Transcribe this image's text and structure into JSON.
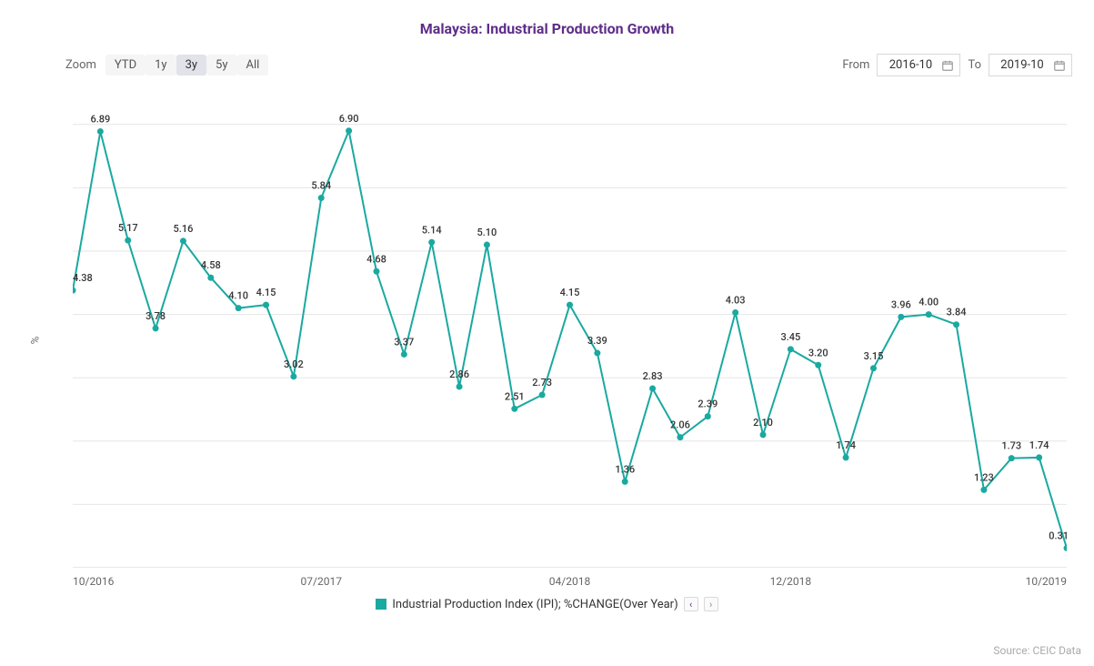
{
  "title": "Malaysia: Industrial Production Growth",
  "title_color": "#5f2d8a",
  "zoom": {
    "label": "Zoom",
    "options": [
      "YTD",
      "1y",
      "3y",
      "5y",
      "All"
    ],
    "active_index": 2
  },
  "date_range": {
    "from_label": "From",
    "from_value": "2016-10",
    "to_label": "To",
    "to_value": "2019-10"
  },
  "chart": {
    "type": "line",
    "ylabel": "%",
    "ylim": [
      0,
      7.5
    ],
    "ytick_step": 1.0,
    "ytick_format": "2dp",
    "grid_color": "#e6e6e6",
    "axis_color": "#d0d0d0",
    "line_color": "#1aa9a0",
    "marker_color": "#1aa9a0",
    "marker_radius": 3.5,
    "line_width": 2,
    "background_color": "#ffffff",
    "x_ticks": [
      {
        "index": 0,
        "label": "10/2016"
      },
      {
        "index": 9,
        "label": "07/2017"
      },
      {
        "index": 18,
        "label": "04/2018"
      },
      {
        "index": 26,
        "label": "12/2018"
      },
      {
        "index": 36,
        "label": "10/2019"
      }
    ],
    "series": {
      "name": "Industrial Production Index (IPI); %CHANGE(Over Year)",
      "points": [
        {
          "label": "4.38",
          "value": 4.38
        },
        {
          "label": "6.89",
          "value": 6.89
        },
        {
          "label": "5.17",
          "value": 5.17
        },
        {
          "label": "3.78",
          "value": 3.78
        },
        {
          "label": "5.16",
          "value": 5.16
        },
        {
          "label": "4.58",
          "value": 4.58
        },
        {
          "label": "4.10",
          "value": 4.1
        },
        {
          "label": "4.15",
          "value": 4.15
        },
        {
          "label": "3.02",
          "value": 3.02
        },
        {
          "label": "5.84",
          "value": 5.84
        },
        {
          "label": "6.90",
          "value": 6.9
        },
        {
          "label": "4.68",
          "value": 4.68
        },
        {
          "label": "3.37",
          "value": 3.37
        },
        {
          "label": "5.14",
          "value": 5.14
        },
        {
          "label": "2.86",
          "value": 2.86
        },
        {
          "label": "5.10",
          "value": 5.1
        },
        {
          "label": "2.51",
          "value": 2.51
        },
        {
          "label": "2.73",
          "value": 2.73
        },
        {
          "label": "4.15",
          "value": 4.15
        },
        {
          "label": "3.39",
          "value": 3.39
        },
        {
          "label": "1.36",
          "value": 1.36
        },
        {
          "label": "2.83",
          "value": 2.83
        },
        {
          "label": "2.06",
          "value": 2.06
        },
        {
          "label": "2.39",
          "value": 2.39
        },
        {
          "label": "4.03",
          "value": 4.03
        },
        {
          "label": "2.10",
          "value": 2.1
        },
        {
          "label": "3.45",
          "value": 3.45
        },
        {
          "label": "3.20",
          "value": 3.2
        },
        {
          "label": "1.74",
          "value": 1.74
        },
        {
          "label": "3.15",
          "value": 3.15
        },
        {
          "label": "3.96",
          "value": 3.96
        },
        {
          "label": "4.00",
          "value": 4.0
        },
        {
          "label": "3.84",
          "value": 3.84
        },
        {
          "label": "1.23",
          "value": 1.23
        },
        {
          "label": "1.73",
          "value": 1.73
        },
        {
          "label": "1.74",
          "value": 1.74
        },
        {
          "label": "0.31",
          "value": 0.31
        }
      ]
    }
  },
  "legend": {
    "prev_symbol": "‹",
    "next_symbol": "›"
  },
  "source": "Source: CEIC Data"
}
